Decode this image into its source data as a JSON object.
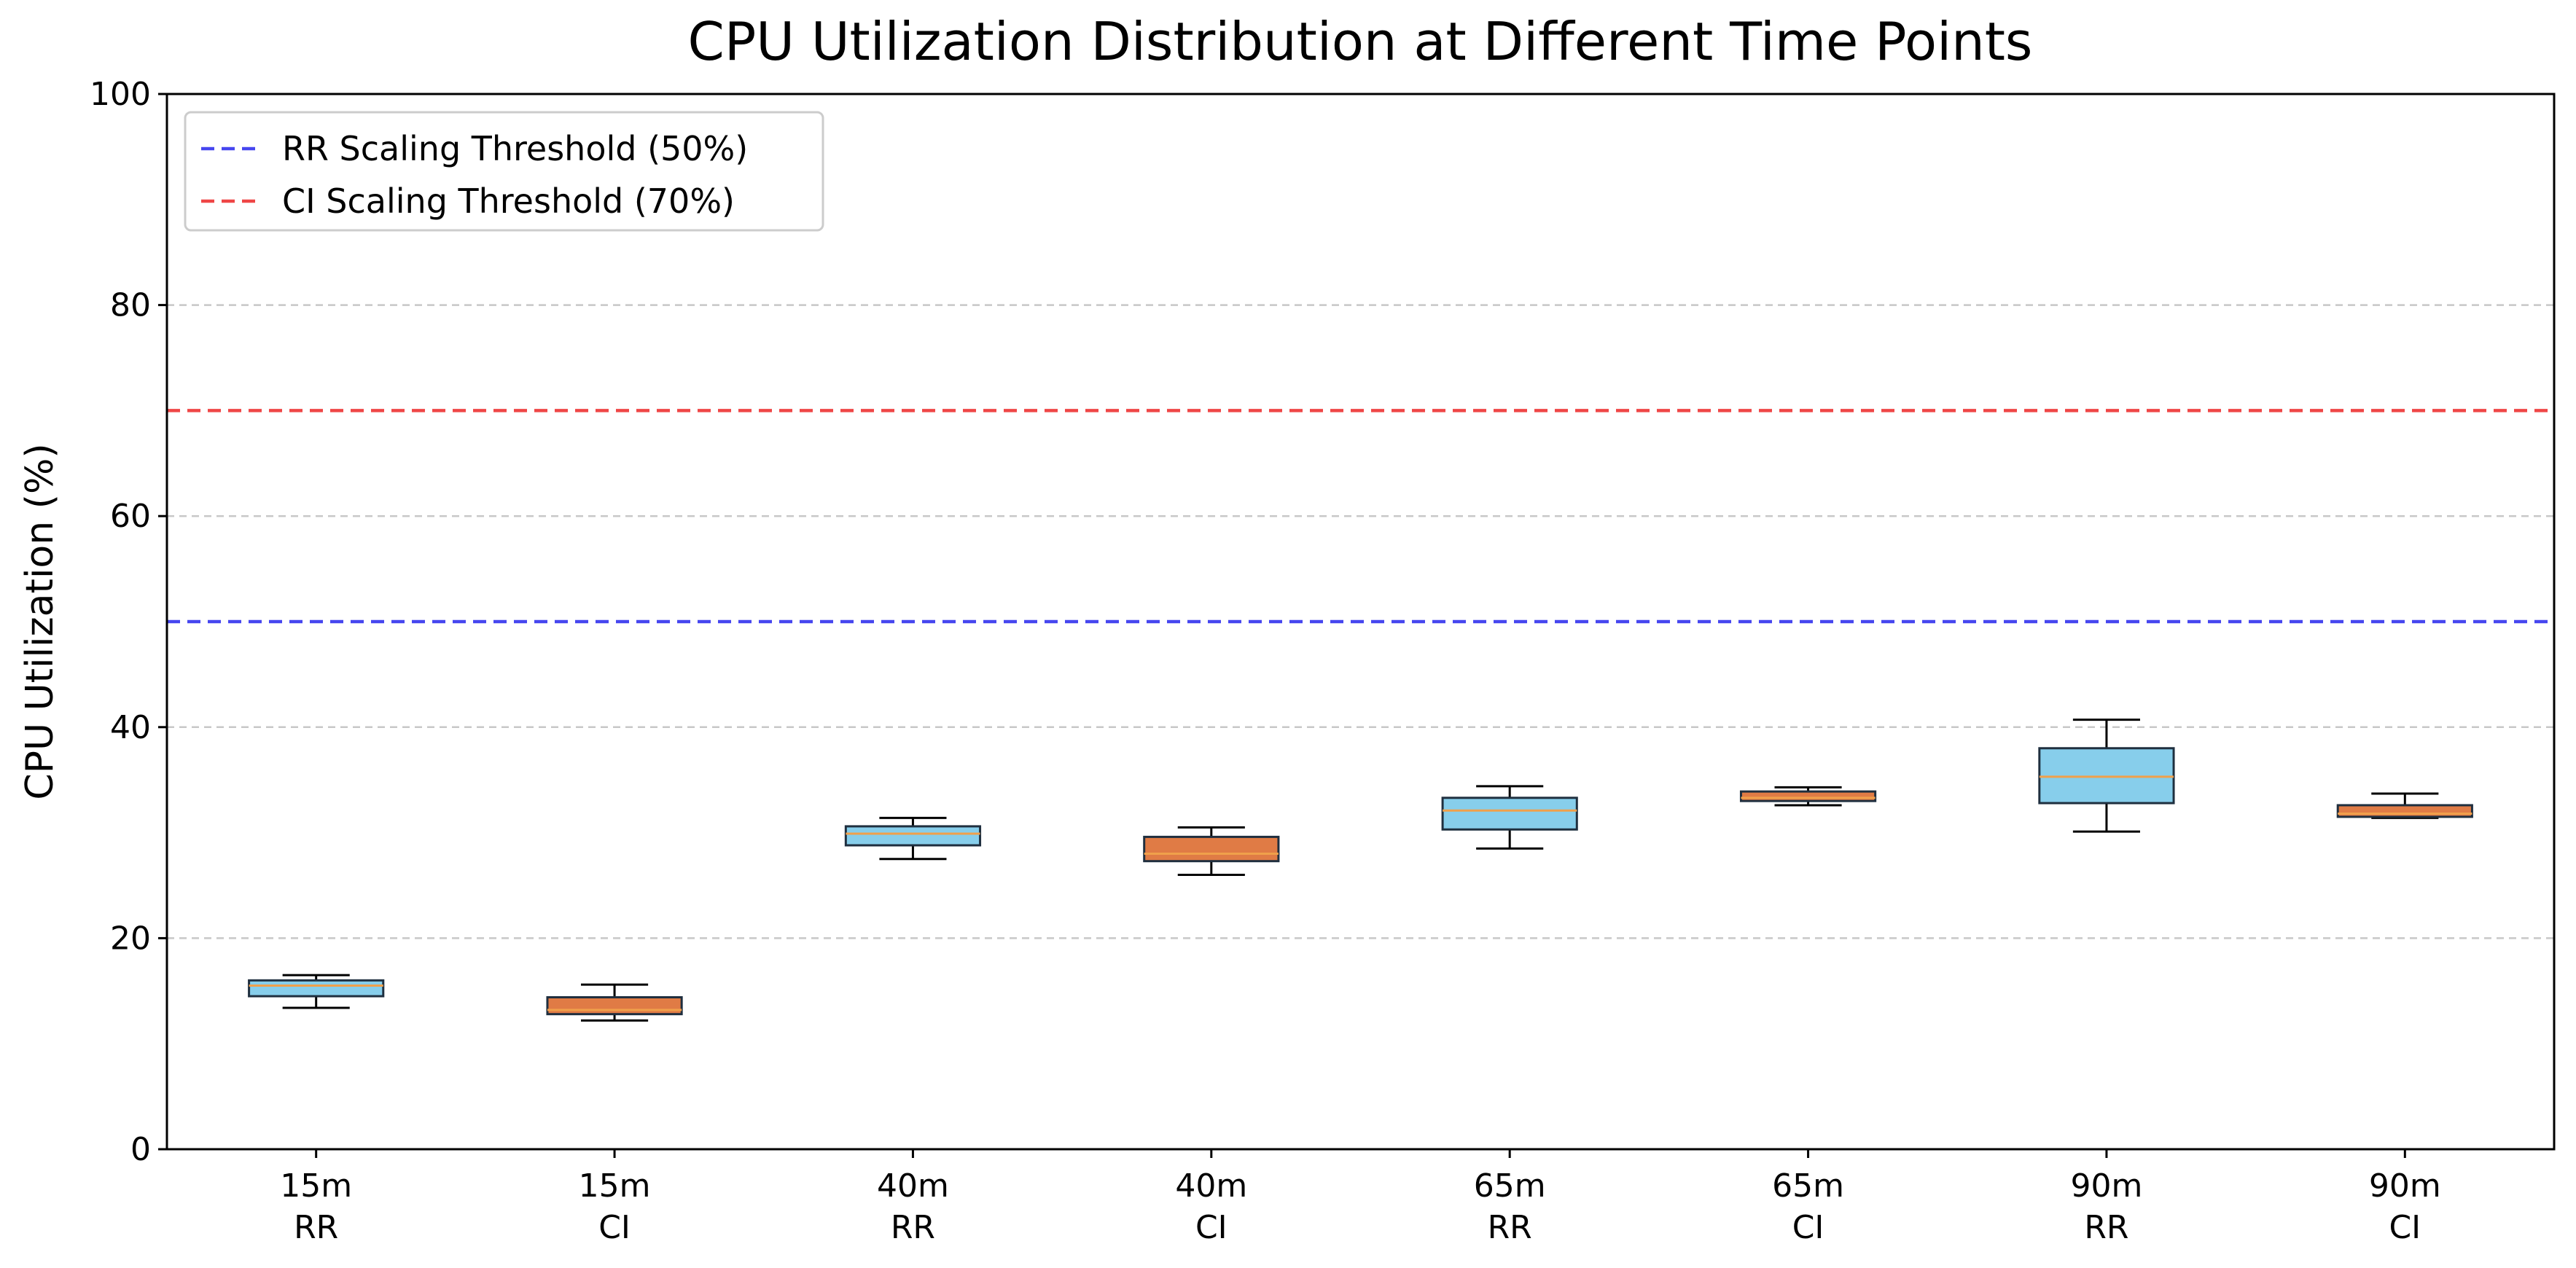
{
  "chart_data": {
    "type": "box",
    "title": "CPU Utilization Distribution at Different Time Points",
    "xlabel": "",
    "ylabel": "CPU Utilization (%)",
    "ylim": [
      0,
      100
    ],
    "yticks": [
      "0",
      "20",
      "40",
      "60",
      "80",
      "100"
    ],
    "ytick_values": [
      0,
      20,
      40,
      60,
      80,
      100
    ],
    "grid": "y-dashed",
    "legend_position": "top-left",
    "categories": [
      {
        "time": "15m",
        "algo": "RR"
      },
      {
        "time": "15m",
        "algo": "CI"
      },
      {
        "time": "40m",
        "algo": "RR"
      },
      {
        "time": "40m",
        "algo": "CI"
      },
      {
        "time": "65m",
        "algo": "RR"
      },
      {
        "time": "65m",
        "algo": "CI"
      },
      {
        "time": "90m",
        "algo": "RR"
      },
      {
        "time": "90m",
        "algo": "CI"
      }
    ],
    "boxes": [
      {
        "whislo": 13.4,
        "q1": 14.5,
        "med": 15.5,
        "q3": 16.0,
        "whishi": 16.5,
        "color": "#87CEEB"
      },
      {
        "whislo": 12.2,
        "q1": 12.8,
        "med": 13.2,
        "q3": 14.4,
        "whishi": 15.6,
        "color": "#E07B45"
      },
      {
        "whislo": 27.5,
        "q1": 28.8,
        "med": 29.9,
        "q3": 30.6,
        "whishi": 31.4,
        "color": "#87CEEB"
      },
      {
        "whislo": 26.0,
        "q1": 27.3,
        "med": 28.0,
        "q3": 29.6,
        "whishi": 30.5,
        "color": "#E07B45"
      },
      {
        "whislo": 28.5,
        "q1": 30.3,
        "med": 32.1,
        "q3": 33.3,
        "whishi": 34.4,
        "color": "#87CEEB"
      },
      {
        "whislo": 32.6,
        "q1": 33.0,
        "med": 33.3,
        "q3": 33.9,
        "whishi": 34.3,
        "color": "#E07B45"
      },
      {
        "whislo": 30.1,
        "q1": 32.8,
        "med": 35.3,
        "q3": 38.0,
        "whishi": 40.7,
        "color": "#87CEEB"
      },
      {
        "whislo": 31.4,
        "q1": 31.5,
        "med": 31.8,
        "q3": 32.6,
        "whishi": 33.7,
        "color": "#E07B45"
      }
    ],
    "median_color": "#F0A04B",
    "thresholds": [
      {
        "name": "RR Scaling Threshold (50%)",
        "value": 50,
        "color": "#3333EE"
      },
      {
        "name": "CI Scaling Threshold (70%)",
        "value": 70,
        "color": "#EE3333"
      }
    ]
  }
}
